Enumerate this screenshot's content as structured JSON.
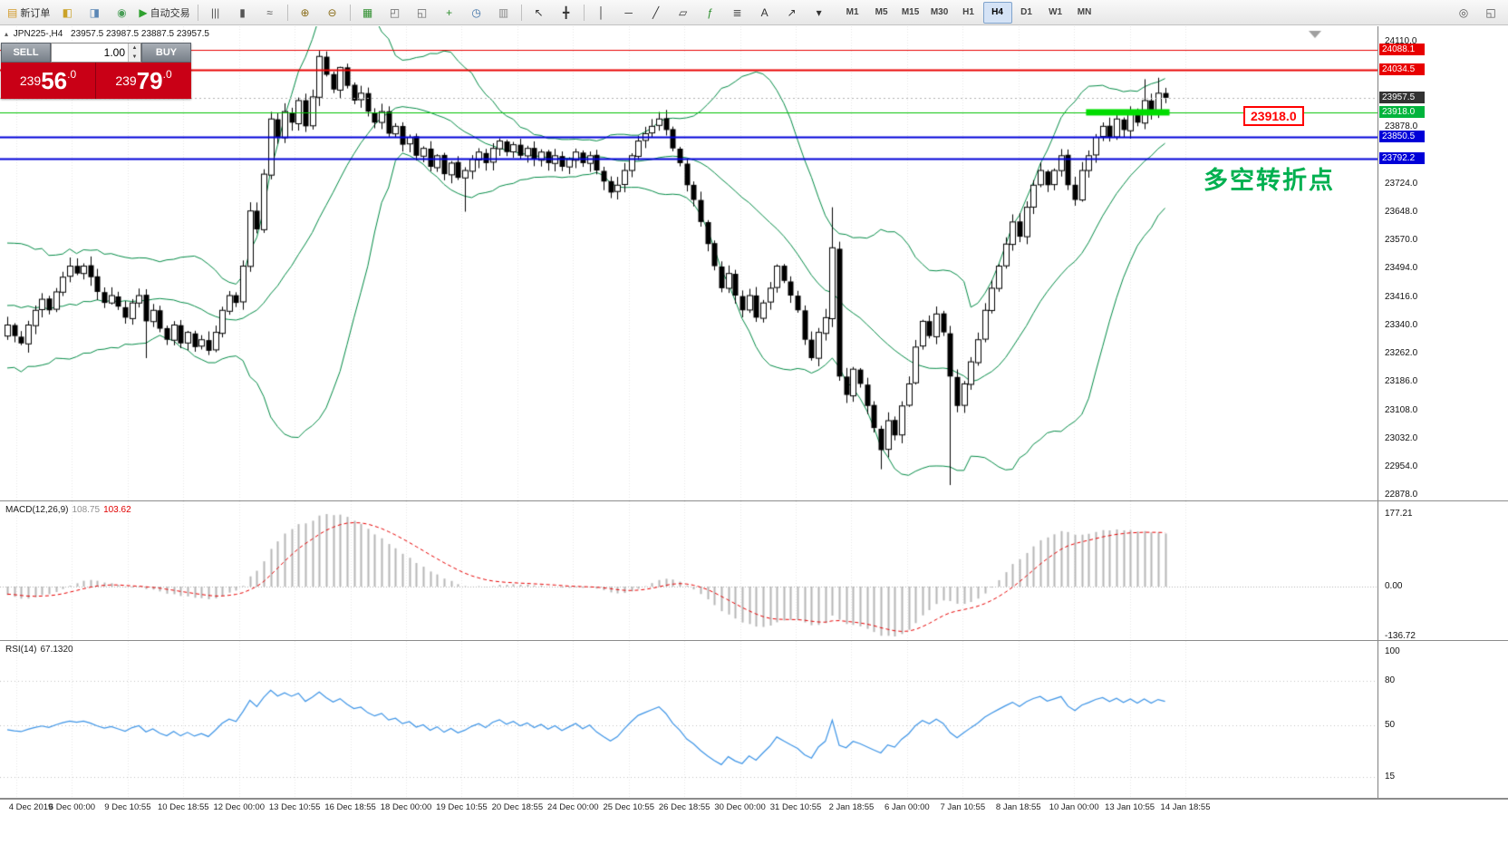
{
  "colors": {
    "accent_red": "#e80000",
    "accent_green_tag": "#00b43c",
    "accent_blue": "#0000d8",
    "current_tag": "#333333",
    "bollinger": "#008a45",
    "grid": "#e7e7e7",
    "candle_up": "#ffffff",
    "candle_down": "#000000",
    "candle_border": "#000000",
    "macd_hist": "#b6b6b6",
    "macd_signal": "#e60000",
    "rsi_line": "#3d94e6",
    "trade_red": "#c90016",
    "highlight_green": "#00dc00",
    "annotation_green": "#00b050"
  },
  "toolbar": {
    "buttons": [
      {
        "name": "new-order-button",
        "label": "新订单",
        "glyph": "▤",
        "color": "#d29a2a"
      },
      {
        "name": "market-watch-button",
        "glyph": "◧",
        "color": "#caa227"
      },
      {
        "name": "data-window-button",
        "glyph": "◨",
        "color": "#5b87b5"
      },
      {
        "name": "navigator-button",
        "glyph": "◉",
        "color": "#4a9e58"
      },
      {
        "name": "autotrading-button",
        "label": "自动交易",
        "glyph": "▶",
        "color": "#2fa12f"
      },
      {
        "sep": true
      },
      {
        "name": "bar-chart-button",
        "glyph": "|||",
        "color": "#555555"
      },
      {
        "name": "candlestick-chart-button",
        "glyph": "▮",
        "color": "#555555"
      },
      {
        "name": "line-chart-button",
        "glyph": "≈",
        "color": "#555555"
      },
      {
        "sep": true
      },
      {
        "name": "zoom-in-button",
        "glyph": "⊕",
        "color": "#8a6d1a"
      },
      {
        "name": "zoom-out-button",
        "glyph": "⊖",
        "color": "#8a6d1a"
      },
      {
        "sep": true
      },
      {
        "name": "tile-windows-button",
        "glyph": "▦",
        "color": "#2f8f2f"
      },
      {
        "name": "cascade-windows-button",
        "glyph": "◰",
        "color": "#666666"
      },
      {
        "name": "arrange-windows-button",
        "glyph": "◱",
        "color": "#666666"
      },
      {
        "name": "new-chart-button",
        "glyph": "+",
        "color": "#2f8f2f"
      },
      {
        "name": "auto-scroll-button",
        "glyph": "◷",
        "color": "#3a6ea5"
      },
      {
        "name": "chart-shift-button",
        "glyph": "▥",
        "color": "#888888"
      },
      {
        "sep": true
      },
      {
        "name": "cursor-button",
        "glyph": "↖",
        "color": "#333333"
      },
      {
        "name": "crosshair-button",
        "glyph": "╋",
        "color": "#333333"
      },
      {
        "sep": true
      },
      {
        "name": "vertical-line-button",
        "glyph": "│",
        "color": "#333333"
      },
      {
        "name": "horizontal-line-button",
        "glyph": "─",
        "color": "#333333"
      },
      {
        "name": "trendline-button",
        "glyph": "╱",
        "color": "#333333"
      },
      {
        "name": "channel-button",
        "glyph": "▱",
        "color": "#333333"
      },
      {
        "name": "fibonacci-button",
        "glyph": "ƒ",
        "color": "#2f8f2f"
      },
      {
        "name": "shapes-button",
        "glyph": "≣",
        "color": "#555555"
      },
      {
        "name": "text-button",
        "glyph": "A",
        "color": "#333333"
      },
      {
        "name": "arrows-button",
        "glyph": "↗",
        "color": "#333333"
      },
      {
        "name": "objects-dropdown-button",
        "glyph": "▾",
        "color": "#333333"
      }
    ],
    "timeframes": [
      "M1",
      "M5",
      "M15",
      "M30",
      "H1",
      "H4",
      "D1",
      "W1",
      "MN"
    ],
    "active_timeframe": "H4",
    "right_buttons": [
      {
        "name": "search-symbol-button",
        "glyph": "◎",
        "color": "#555555"
      },
      {
        "name": "popup-prices-button",
        "glyph": "◱",
        "color": "#555555"
      }
    ]
  },
  "chart": {
    "symbol_info": {
      "symbol": "JPN225-,H4",
      "ohlc": "23957.5 23987.5 23887.5 23957.5"
    },
    "trade_panel": {
      "sell_button": "SELL",
      "buy_button": "BUY",
      "volume": "1.00",
      "sell_price": {
        "small": "239",
        "big": "56",
        "dec": ".0",
        "full": "23956.0"
      },
      "buy_price": {
        "small": "239",
        "big": "79",
        "dec": ".0",
        "full": "23979.0"
      }
    },
    "price_label_box": "23918.0",
    "annotation": "多空转折点"
  },
  "indicators": {
    "macd": {
      "name": "MACD(12,26,9)",
      "value_main": "108.75",
      "value_signal": "103.62",
      "scale": [
        177.21,
        0.0,
        -136.72
      ],
      "scale_labels": [
        "177.21",
        "0.00",
        "-136.72"
      ]
    },
    "rsi": {
      "name": "RSI(14)",
      "value": "67.1320",
      "scale_labels": [
        "100",
        "80",
        "50",
        "15"
      ],
      "levels": [
        80,
        50,
        15
      ]
    }
  },
  "time_axis": {
    "labels": [
      "4 Dec 2019",
      "6 Dec 00:00",
      "9 Dec 10:55",
      "10 Dec 18:55",
      "12 Dec 00:00",
      "13 Dec 10:55",
      "16 Dec 18:55",
      "18 Dec 00:00",
      "19 Dec 10:55",
      "20 Dec 18:55",
      "24 Dec 00:00",
      "25 Dec 10:55",
      "26 Dec 18:55",
      "30 Dec 00:00",
      "31 Dec 10:55",
      "2 Jan 18:55",
      "6 Jan 00:00",
      "7 Jan 10:55",
      "8 Jan 18:55",
      "10 Jan 00:00",
      "13 Jan 10:55",
      "14 Jan 18:55"
    ]
  },
  "chart_data": [
    {
      "type": "candlestick",
      "symbol": "JPN225-",
      "timeframe": "H4",
      "ohlc_header": [
        23957.5,
        23987.5,
        23887.5,
        23957.5
      ],
      "current_price": 23957.5,
      "bollinger": {
        "period": 20,
        "deviation": 2
      },
      "price_axis": {
        "max": 24110.0,
        "min": 22878.0,
        "ticks": [
          {
            "label": "24110.0",
            "price": 24110.0,
            "type": "plain"
          },
          {
            "label": "24088.1",
            "price": 24088.1,
            "type": "red"
          },
          {
            "label": "24034.5",
            "price": 24034.5,
            "type": "red"
          },
          {
            "label": "23957.5",
            "price": 23957.5,
            "type": "current"
          },
          {
            "label": "23918.0",
            "price": 23918.0,
            "type": "green"
          },
          {
            "label": "23878.0",
            "price": 23878.0,
            "type": "plain"
          },
          {
            "label": "23850.5",
            "price": 23850.5,
            "type": "blue"
          },
          {
            "label": "23792.2",
            "price": 23792.2,
            "type": "blue"
          },
          {
            "label": "23724.0",
            "price": 23724.0,
            "type": "plain"
          },
          {
            "label": "23648.0",
            "price": 23648.0,
            "type": "plain"
          },
          {
            "label": "23570.0",
            "price": 23570.0,
            "type": "plain"
          },
          {
            "label": "23494.0",
            "price": 23494.0,
            "type": "plain"
          },
          {
            "label": "23416.0",
            "price": 23416.0,
            "type": "plain"
          },
          {
            "label": "23340.0",
            "price": 23340.0,
            "type": "plain"
          },
          {
            "label": "23262.0",
            "price": 23262.0,
            "type": "plain"
          },
          {
            "label": "23186.0",
            "price": 23186.0,
            "type": "plain"
          },
          {
            "label": "23108.0",
            "price": 23108.0,
            "type": "plain"
          },
          {
            "label": "23032.0",
            "price": 23032.0,
            "type": "plain"
          },
          {
            "label": "22954.0",
            "price": 22954.0,
            "type": "plain"
          },
          {
            "label": "22878.0",
            "price": 22878.0,
            "type": "plain"
          }
        ]
      },
      "hlines": [
        {
          "price": 24088.1,
          "color": "#e80000",
          "width": 1
        },
        {
          "price": 24034.5,
          "color": "#e80000",
          "width": 2
        },
        {
          "price": 23918.0,
          "color": "#00c000",
          "width": 1
        },
        {
          "price": 23850.5,
          "color": "#0000d8",
          "width": 2
        },
        {
          "price": 23792.2,
          "color": "#0000d8",
          "width": 2
        }
      ],
      "highlight_segment": {
        "price": 23918.0,
        "from_index": 156,
        "to_index": 167
      },
      "closes": [
        23340,
        23310,
        23290,
        23340,
        23380,
        23410,
        23380,
        23430,
        23470,
        23500,
        23480,
        23500,
        23470,
        23430,
        23400,
        23420,
        23390,
        23360,
        23400,
        23420,
        23350,
        23380,
        23330,
        23300,
        23340,
        23290,
        23320,
        23280,
        23300,
        23270,
        23320,
        23380,
        23420,
        23400,
        23500,
        23650,
        23600,
        23750,
        23900,
        23850,
        23920,
        23890,
        23950,
        23880,
        23960,
        24070,
        24020,
        23980,
        24040,
        23990,
        23950,
        23970,
        23920,
        23890,
        23920,
        23860,
        23880,
        23830,
        23850,
        23800,
        23820,
        23770,
        23800,
        23750,
        23780,
        23740,
        23760,
        23790,
        23810,
        23780,
        23820,
        23840,
        23810,
        23830,
        23800,
        23820,
        23790,
        23810,
        23780,
        23800,
        23770,
        23790,
        23810,
        23780,
        23800,
        23760,
        23730,
        23700,
        23720,
        23760,
        23800,
        23840,
        23860,
        23880,
        23900,
        23870,
        23820,
        23780,
        23720,
        23680,
        23620,
        23560,
        23500,
        23440,
        23480,
        23420,
        23380,
        23420,
        23360,
        23400,
        23440,
        23500,
        23460,
        23420,
        23380,
        23300,
        23250,
        23320,
        23360,
        23550,
        23200,
        23150,
        23220,
        23180,
        23120,
        23060,
        23000,
        23080,
        23040,
        23120,
        23180,
        23280,
        23350,
        23310,
        23370,
        23320,
        23200,
        23120,
        23180,
        23240,
        23300,
        23380,
        23440,
        23500,
        23560,
        23620,
        23580,
        23660,
        23720,
        23760,
        23720,
        23760,
        23800,
        23720,
        23680,
        23760,
        23800,
        23850,
        23880,
        23850,
        23900,
        23870,
        23920,
        23890,
        23950,
        23920,
        23970,
        23957.5
      ],
      "wick_overrides": {
        "20": {
          "low": 23250
        },
        "45": {
          "high": 24085
        },
        "48": {
          "high": 24042
        },
        "66": {
          "low": 23648
        },
        "119": {
          "high": 23660
        },
        "126": {
          "low": 22948
        },
        "136": {
          "low": 22905
        },
        "164": {
          "high": 24008
        },
        "166": {
          "high": 24012
        }
      }
    },
    {
      "type": "macd",
      "params": [
        12,
        26,
        9
      ],
      "display_values": [
        108.75,
        103.62
      ],
      "axis": {
        "max": 177.21,
        "zero": 0.0,
        "min": -136.72
      },
      "derived_from": "candlestick closes",
      "styles": {
        "main": "histogram",
        "signal": "dashed-line"
      }
    },
    {
      "type": "line",
      "name": "RSI",
      "period": 14,
      "display_value": 67.132,
      "axis": {
        "max": 100,
        "min": 0,
        "levels": [
          80,
          50,
          15
        ]
      },
      "derived_from": "candlestick closes"
    }
  ]
}
